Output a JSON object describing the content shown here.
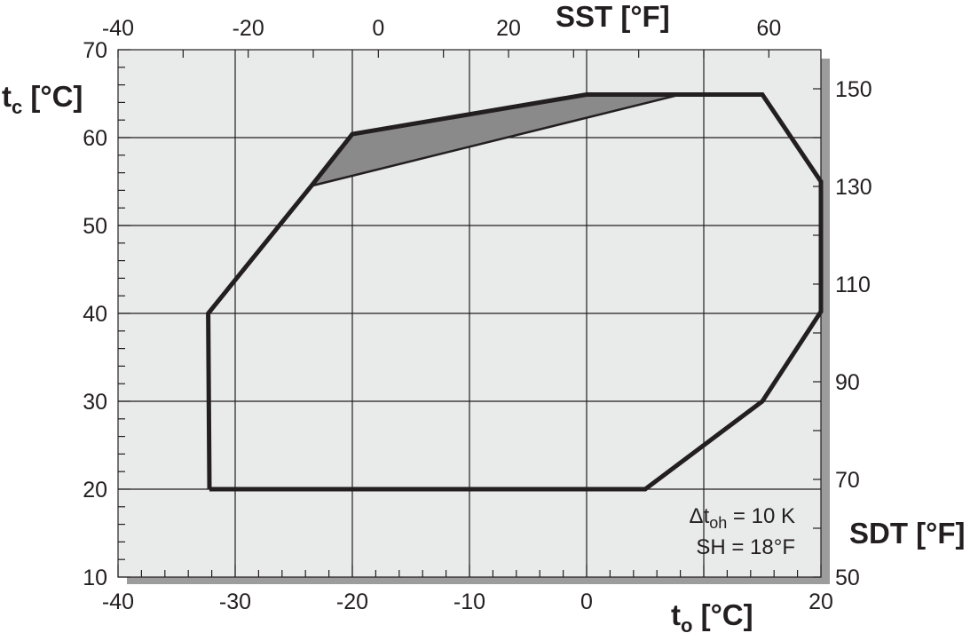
{
  "chart_data": {
    "type": "area",
    "axes": {
      "x_bottom": {
        "label": "t",
        "label_sub": "o",
        "label_unit": " [°C]",
        "range": [
          -40,
          20
        ],
        "ticks": [
          "-40",
          "-30",
          "-20",
          "-10",
          "0",
          "20"
        ]
      },
      "y_left": {
        "label": "t",
        "label_sub": "c",
        "label_unit": " [°C]",
        "range": [
          10,
          70
        ],
        "ticks": [
          "10",
          "20",
          "30",
          "40",
          "50",
          "60",
          "70"
        ]
      },
      "x_top": {
        "label": "SST [°F]",
        "ticks": [
          "-40",
          "-20",
          "0",
          "20",
          "60"
        ]
      },
      "y_right": {
        "label": "SDT [°F]",
        "ticks": [
          "50",
          "70",
          "90",
          "110",
          "130",
          "150"
        ]
      }
    },
    "grid": true,
    "envelope": {
      "points": [
        [
          -32.2,
          20
        ],
        [
          -32.3,
          40
        ],
        [
          -23.5,
          54.5
        ],
        [
          -20,
          60.4
        ],
        [
          0,
          64.9
        ],
        [
          15,
          64.9
        ],
        [
          20,
          55
        ],
        [
          20,
          40.2
        ],
        [
          15,
          30
        ],
        [
          5,
          20
        ],
        [
          -7.5,
          20
        ],
        [
          -32.2,
          20
        ]
      ],
      "color": "#231f20"
    },
    "shaded_region": {
      "points": [
        [
          -23.5,
          54.5
        ],
        [
          -20,
          60.4
        ],
        [
          0,
          64.9
        ],
        [
          8,
          64.9
        ]
      ],
      "color": "#8a8a8a"
    },
    "annotations": {
      "line1_prefix": "Δt",
      "line1_sub": "oh",
      "line1_suffix": " = 10 K",
      "line2": "SH = 18°F"
    },
    "colors": {
      "plot_bg": "#e9eaea",
      "grid": "#231f20",
      "shadow": "#9c9c9c"
    }
  }
}
